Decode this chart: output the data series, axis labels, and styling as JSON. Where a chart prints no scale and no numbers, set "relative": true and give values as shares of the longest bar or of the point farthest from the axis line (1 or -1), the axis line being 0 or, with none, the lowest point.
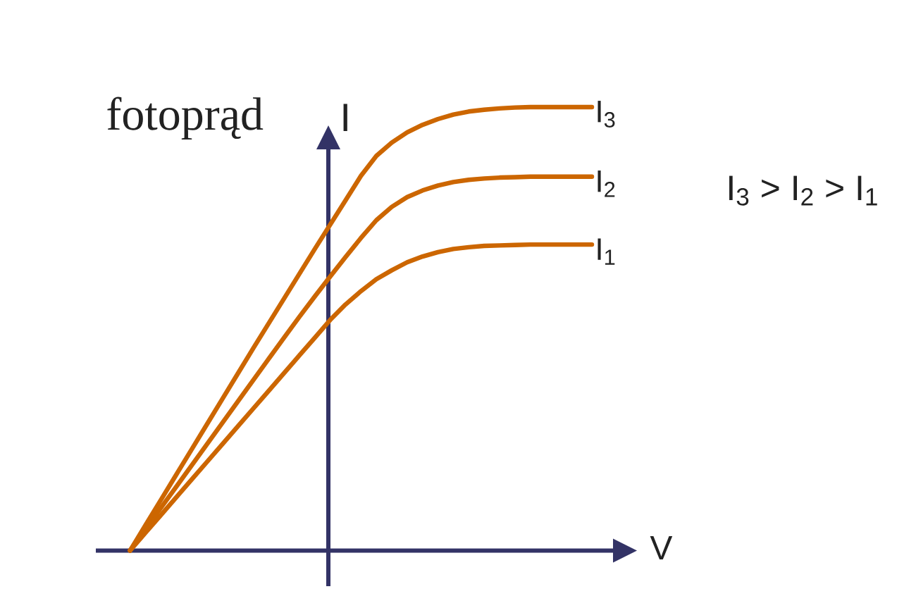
{
  "chart_data": {
    "type": "line",
    "relative": true,
    "xlabel": "V",
    "ylabel": "I",
    "annotations": [
      "fotoprąd",
      "I$_{3}$ > I$_{2}$ > I$_{1}$"
    ],
    "categories": [
      null,
      null,
      null,
      null,
      null,
      null,
      null,
      null,
      null,
      null,
      null,
      null,
      null,
      null,
      null,
      null,
      null,
      null,
      null,
      null,
      null,
      null,
      null,
      null,
      null,
      null,
      null,
      null,
      null,
      null,
      null
    ],
    "series": [
      {
        "name": "I$_{1}$",
        "color": "#cc6600",
        "values": [
          0,
          0.04,
          0.08,
          0.12,
          0.16,
          0.2,
          0.24,
          0.28,
          0.32,
          0.36,
          0.4,
          0.44,
          0.48,
          0.52,
          0.555,
          0.585,
          0.612,
          0.632,
          0.65,
          0.663,
          0.673,
          0.68,
          0.684,
          0.687,
          0.688,
          0.689,
          0.69,
          0.69,
          0.69,
          0.69,
          0.69
        ]
      },
      {
        "name": "I$_{2}$",
        "color": "#cc6600",
        "values": [
          0,
          0.048,
          0.096,
          0.144,
          0.192,
          0.24,
          0.288,
          0.336,
          0.384,
          0.432,
          0.48,
          0.527,
          0.573,
          0.618,
          0.662,
          0.705,
          0.745,
          0.775,
          0.797,
          0.812,
          0.823,
          0.831,
          0.836,
          0.839,
          0.841,
          0.842,
          0.843,
          0.843,
          0.843,
          0.843,
          0.843
        ]
      },
      {
        "name": "I$_{3}$",
        "color": "#cc6600",
        "values": [
          0,
          0.057,
          0.114,
          0.171,
          0.228,
          0.285,
          0.342,
          0.399,
          0.456,
          0.512,
          0.568,
          0.624,
          0.68,
          0.735,
          0.79,
          0.845,
          0.89,
          0.92,
          0.943,
          0.96,
          0.973,
          0.983,
          0.99,
          0.994,
          0.997,
          0.999,
          1,
          1,
          1,
          1,
          1
        ]
      }
    ]
  }
}
